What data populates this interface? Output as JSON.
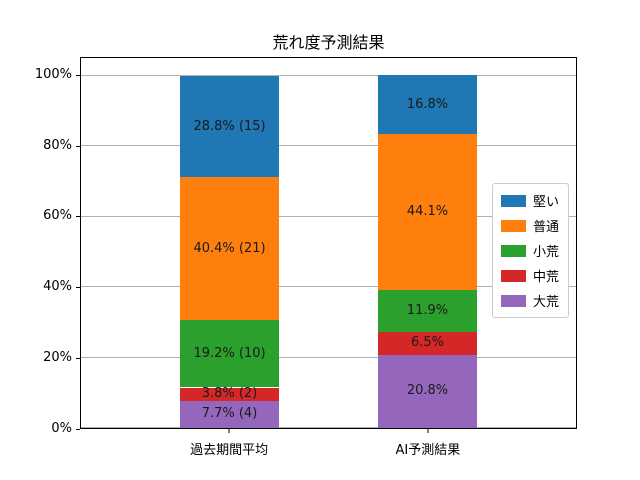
{
  "chart_data": {
    "type": "bar",
    "stacked": true,
    "title": "荒れ度予測結果",
    "categories": [
      "過去期間平均",
      "AI予測結果"
    ],
    "series": [
      {
        "name": "大荒",
        "color": "#9467bd",
        "values": [
          7.7,
          20.8
        ],
        "labels": [
          "7.7% (4)",
          "20.8%"
        ]
      },
      {
        "name": "中荒",
        "color": "#d62728",
        "values": [
          3.8,
          6.5
        ],
        "labels": [
          "3.8% (2)",
          "6.5%"
        ]
      },
      {
        "name": "小荒",
        "color": "#2ca02c",
        "values": [
          19.2,
          11.9
        ],
        "labels": [
          "19.2% (10)",
          "11.9%"
        ]
      },
      {
        "name": "普通",
        "color": "#ff7f0e",
        "values": [
          40.4,
          44.1
        ],
        "labels": [
          "40.4% (21)",
          "44.1%"
        ]
      },
      {
        "name": "堅い",
        "color": "#1f77b4",
        "values": [
          28.8,
          16.8
        ],
        "labels": [
          "28.8% (15)",
          "16.8%"
        ]
      }
    ],
    "legend": {
      "position": "center right",
      "order": [
        "堅い",
        "普通",
        "小荒",
        "中荒",
        "大荒"
      ]
    },
    "y_axis": {
      "ticks": [
        "0%",
        "20%",
        "40%",
        "60%",
        "80%",
        "100%"
      ],
      "tick_values": [
        0,
        20,
        40,
        60,
        80,
        100
      ],
      "grid": true
    },
    "xlabel": "",
    "ylabel": "",
    "ylim": [
      0,
      105
    ],
    "bar_centers_pct": [
      30,
      70
    ]
  }
}
